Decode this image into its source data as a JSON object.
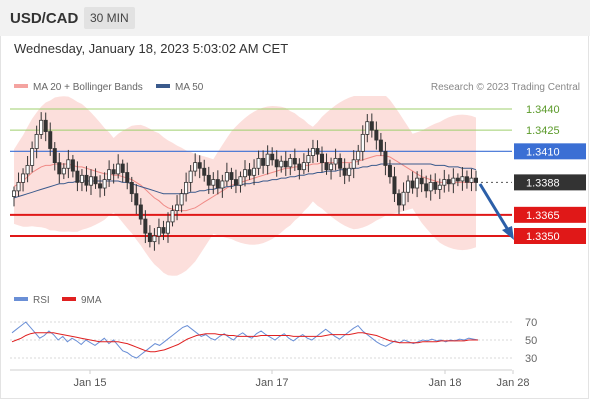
{
  "header": {
    "pair": "USD/CAD",
    "timeframe": "30 MIN"
  },
  "timestamp": "Wednesday, January 18, 2023 5:03:02 AM CET",
  "legend": [
    {
      "label": "MA 20 + Bollinger Bands",
      "color": "#f4a3a0"
    },
    {
      "label": "MA 50",
      "color": "#3a5a8c"
    }
  ],
  "credit": "Research © 2023 Trading Central",
  "rsi_legend": [
    {
      "label": "RSI",
      "color": "#6a8fd6"
    },
    {
      "label": "9MA",
      "color": "#e02020"
    }
  ],
  "chart_data": [
    {
      "type": "candlestick",
      "title": "USD/CAD",
      "ylim": [
        1.3315,
        1.3455
      ],
      "x_ticks": [
        "Jan 15",
        "Jan 17",
        "Jan 18",
        "Jan 28"
      ],
      "levels": [
        {
          "label": "1.3440",
          "value": 1.344,
          "kind": "resistance"
        },
        {
          "label": "1.3425",
          "value": 1.3425,
          "kind": "resistance"
        },
        {
          "label": "1.3410",
          "value": 1.341,
          "kind": "pivot"
        },
        {
          "label": "1.3388",
          "value": 1.3388,
          "kind": "last"
        },
        {
          "label": "1.3365",
          "value": 1.3365,
          "kind": "support"
        },
        {
          "label": "1.3350",
          "value": 1.335,
          "kind": "support"
        }
      ],
      "closes": [
        1.3382,
        1.3388,
        1.3394,
        1.34,
        1.3412,
        1.3422,
        1.3432,
        1.3424,
        1.3412,
        1.3402,
        1.3394,
        1.3398,
        1.3404,
        1.3396,
        1.3388,
        1.3393,
        1.3386,
        1.3392,
        1.3387,
        1.3384,
        1.339,
        1.3397,
        1.3394,
        1.3401,
        1.3395,
        1.3388,
        1.338,
        1.3372,
        1.3362,
        1.3352,
        1.3346,
        1.335,
        1.3356,
        1.3352,
        1.336,
        1.3368,
        1.3372,
        1.338,
        1.3388,
        1.3396,
        1.3402,
        1.3398,
        1.3393,
        1.3386,
        1.339,
        1.3384,
        1.3389,
        1.3395,
        1.339,
        1.3386,
        1.3392,
        1.3397,
        1.3393,
        1.3398,
        1.3405,
        1.34,
        1.3408,
        1.3404,
        1.3399,
        1.3403,
        1.3399,
        1.3405,
        1.3401,
        1.3397,
        1.3402,
        1.3407,
        1.3412,
        1.3408,
        1.3402,
        1.3397,
        1.3401,
        1.3405,
        1.3398,
        1.3393,
        1.3398,
        1.3404,
        1.341,
        1.3422,
        1.3431,
        1.3425,
        1.3418,
        1.341,
        1.34,
        1.3392,
        1.338,
        1.3372,
        1.3381,
        1.3389,
        1.3384,
        1.3391,
        1.3387,
        1.3382,
        1.3388,
        1.3383,
        1.3386,
        1.339,
        1.3387,
        1.3391,
        1.3389,
        1.3392,
        1.3388,
        1.3391,
        1.3388
      ],
      "ma20": [
        1.3385,
        1.3387,
        1.3389,
        1.3392,
        1.3395,
        1.3397,
        1.3399,
        1.34,
        1.34,
        1.3401,
        1.3401,
        1.3401,
        1.3401,
        1.34,
        1.3399,
        1.3399,
        1.3398,
        1.3397,
        1.3396,
        1.3395,
        1.3394,
        1.3394,
        1.3393,
        1.3393,
        1.3392,
        1.3391,
        1.339,
        1.3388,
        1.3386,
        1.3383,
        1.338,
        1.3377,
        1.3375,
        1.3372,
        1.337,
        1.3369,
        1.3368,
        1.3368,
        1.3368,
        1.3369,
        1.337,
        1.3372,
        1.3374,
        1.3376,
        1.3378,
        1.338,
        1.3382,
        1.3384,
        1.3386,
        1.3387,
        1.3388,
        1.3389,
        1.339,
        1.3391,
        1.3392,
        1.3393,
        1.3394,
        1.3395,
        1.3396,
        1.3397,
        1.3398,
        1.3398,
        1.3399,
        1.3399,
        1.34,
        1.34,
        1.3401,
        1.3401,
        1.3402,
        1.3402,
        1.3402,
        1.3402,
        1.3402,
        1.3402,
        1.3402,
        1.3402,
        1.3403,
        1.3404,
        1.3405,
        1.3406,
        1.3407,
        1.3407,
        1.3407,
        1.3406,
        1.3404,
        1.3402,
        1.34,
        1.3398,
        1.3396,
        1.3394,
        1.3392,
        1.3391,
        1.339,
        1.3389,
        1.3388,
        1.3388,
        1.3388,
        1.3388,
        1.3388,
        1.3388,
        1.3388,
        1.3388,
        1.3388
      ],
      "ma50": [
        1.3377,
        1.3378,
        1.3379,
        1.338,
        1.3381,
        1.3382,
        1.3383,
        1.3384,
        1.3385,
        1.3386,
        1.3387,
        1.3387,
        1.3388,
        1.3388,
        1.3389,
        1.3389,
        1.3389,
        1.3389,
        1.3389,
        1.3389,
        1.3389,
        1.3389,
        1.3389,
        1.3389,
        1.3388,
        1.3388,
        1.3387,
        1.3386,
        1.3385,
        1.3384,
        1.3383,
        1.3382,
        1.3381,
        1.338,
        1.338,
        1.338,
        1.338,
        1.338,
        1.338,
        1.3381,
        1.3381,
        1.3382,
        1.3382,
        1.3383,
        1.3383,
        1.3384,
        1.3384,
        1.3385,
        1.3385,
        1.3386,
        1.3386,
        1.3387,
        1.3387,
        1.3388,
        1.3388,
        1.3389,
        1.3389,
        1.339,
        1.339,
        1.3391,
        1.3391,
        1.3392,
        1.3392,
        1.3393,
        1.3393,
        1.3394,
        1.3394,
        1.3395,
        1.3395,
        1.3396,
        1.3396,
        1.3396,
        1.3397,
        1.3397,
        1.3397,
        1.3398,
        1.3398,
        1.3399,
        1.3399,
        1.34,
        1.34,
        1.3401,
        1.3401,
        1.3401,
        1.3401,
        1.3401,
        1.3401,
        1.3401,
        1.3401,
        1.3401,
        1.3401,
        1.3401,
        1.3401,
        1.34,
        1.34,
        1.34,
        1.3399,
        1.3399,
        1.3399,
        1.3398,
        1.3398,
        1.3398,
        1.3397
      ]
    },
    {
      "type": "line",
      "title": "RSI",
      "ylim": [
        20,
        80
      ],
      "y_ticks": [
        70,
        50,
        30
      ],
      "series": [
        {
          "name": "RSI",
          "values": [
            58,
            62,
            66,
            70,
            64,
            58,
            52,
            55,
            60,
            56,
            50,
            54,
            48,
            52,
            49,
            45,
            50,
            47,
            44,
            48,
            52,
            46,
            50,
            44,
            38,
            36,
            32,
            30,
            34,
            38,
            42,
            46,
            44,
            48,
            52,
            56,
            60,
            64,
            66,
            62,
            58,
            54,
            56,
            52,
            50,
            54,
            57,
            53,
            50,
            55,
            58,
            54,
            52,
            57,
            60,
            56,
            53,
            50,
            54,
            57,
            52,
            49,
            53,
            56,
            52,
            50,
            54,
            58,
            62,
            58,
            54,
            51,
            55,
            59,
            63,
            66,
            60,
            56,
            52,
            48,
            45,
            43,
            46,
            49,
            47,
            50,
            48,
            46,
            48,
            50,
            49,
            51,
            49,
            50,
            48,
            50,
            49,
            51,
            50,
            52,
            51,
            50
          ]
        },
        {
          "name": "9MA",
          "values": [
            48,
            50,
            52,
            55,
            57,
            58,
            58,
            58,
            58,
            58,
            57,
            56,
            55,
            54,
            53,
            52,
            51,
            50,
            49,
            48,
            48,
            48,
            48,
            48,
            47,
            46,
            44,
            42,
            40,
            38,
            37,
            37,
            38,
            39,
            41,
            43,
            45,
            48,
            51,
            53,
            55,
            56,
            57,
            57,
            57,
            56,
            56,
            55,
            55,
            54,
            54,
            54,
            54,
            54,
            55,
            55,
            55,
            55,
            55,
            55,
            55,
            54,
            54,
            54,
            54,
            54,
            54,
            54,
            55,
            56,
            56,
            56,
            56,
            56,
            57,
            58,
            58,
            57,
            56,
            55,
            53,
            51,
            49,
            48,
            47,
            47,
            47,
            47,
            47,
            48,
            48,
            48,
            48,
            49,
            49,
            49,
            49,
            49,
            49,
            50,
            50,
            50
          ]
        }
      ]
    }
  ]
}
